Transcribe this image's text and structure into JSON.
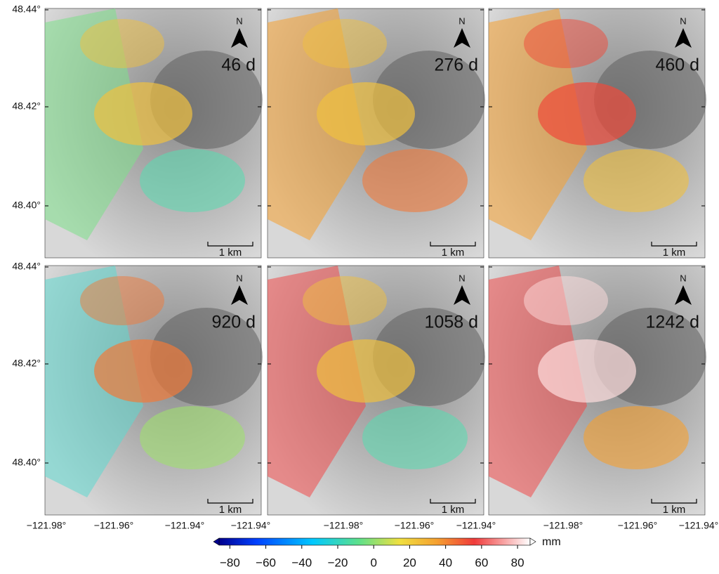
{
  "panels": [
    {
      "label": "46 d"
    },
    {
      "label": "276 d"
    },
    {
      "label": "460 d"
    },
    {
      "label": "920 d"
    },
    {
      "label": "1058 d"
    },
    {
      "label": "1242 d"
    }
  ],
  "north_label": "N",
  "scale_label": "1 km",
  "y_ticks": [
    "48.44°",
    "48.42°",
    "48.40°"
  ],
  "x_ticks": [
    [
      "−121.98°",
      "−121.96°",
      "−121.94°",
      "−121.94°"
    ],
    [
      "−121.98°",
      "−121.96°",
      "−121.94°"
    ],
    [
      "−121.98°",
      "−121.96°",
      "−121.94°"
    ]
  ],
  "colorbar": {
    "unit": "mm",
    "lim": [
      -86,
      87
    ],
    "ticks": [
      {
        "value": -80,
        "label": "−80"
      },
      {
        "value": -60,
        "label": "−60"
      },
      {
        "value": -40,
        "label": "−40"
      },
      {
        "value": -20,
        "label": "−20"
      },
      0,
      20,
      40,
      60,
      80
    ]
  }
}
